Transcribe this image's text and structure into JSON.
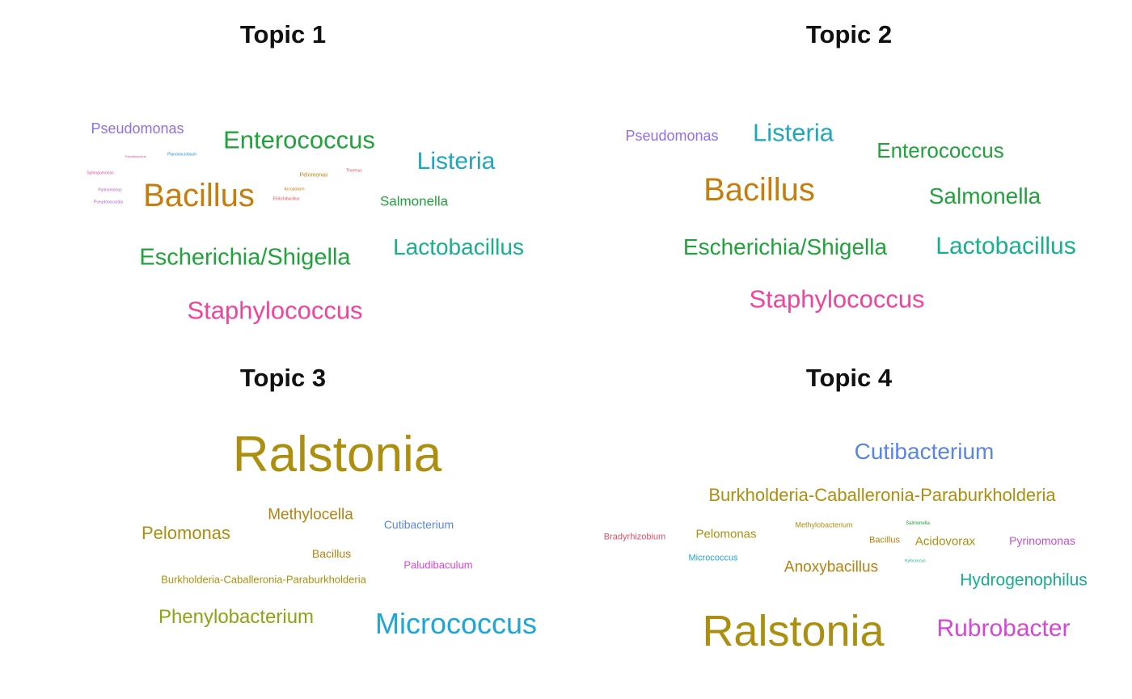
{
  "chart_data": [
    {
      "type": "wordcloud",
      "title": "Topic 1",
      "words": [
        {
          "text": "Bacillus",
          "weight": 40,
          "color": "#c77c0e"
        },
        {
          "text": "Enterococcus",
          "weight": 31,
          "color": "#1fa33a"
        },
        {
          "text": "Listeria",
          "weight": 30,
          "color": "#1ea7bd"
        },
        {
          "text": "Escherichia/Shigella",
          "weight": 29,
          "color": "#1fa33a"
        },
        {
          "text": "Staphylococcus",
          "weight": 31,
          "color": "#f0449c"
        },
        {
          "text": "Lactobacillus",
          "weight": 28,
          "color": "#17b08d"
        },
        {
          "text": "Salmonella",
          "weight": 17,
          "color": "#1fa33a"
        },
        {
          "text": "Pseudomonas",
          "weight": 18,
          "color": "#8f6ff0"
        },
        {
          "text": "Pelomonas",
          "weight": 7,
          "color": "#c77c0e"
        },
        {
          "text": "Thermus",
          "weight": 5,
          "color": "#e05050"
        },
        {
          "text": "Acropolium",
          "weight": 5,
          "color": "#c77c0e"
        },
        {
          "text": "Planomicrobium",
          "weight": 5,
          "color": "#2196d8"
        },
        {
          "text": "Sphingomonas",
          "weight": 5,
          "color": "#e34ea8"
        },
        {
          "text": "Pyrinomonas",
          "weight": 5,
          "color": "#c44fd6"
        },
        {
          "text": "Pseudonocardia",
          "weight": 5,
          "color": "#b05bd8"
        },
        {
          "text": "Paludibaculum",
          "weight": 4,
          "color": "#e34ea8"
        },
        {
          "text": "Ehrlichibacillus",
          "weight": 5,
          "color": "#e05050"
        }
      ]
    },
    {
      "type": "wordcloud",
      "title": "Topic 2",
      "words": [
        {
          "text": "Bacillus",
          "weight": 40,
          "color": "#c77c0e"
        },
        {
          "text": "Listeria",
          "weight": 31,
          "color": "#1ea7bd"
        },
        {
          "text": "Enterococcus",
          "weight": 26,
          "color": "#1fa33a"
        },
        {
          "text": "Salmonella",
          "weight": 28,
          "color": "#1fa33a"
        },
        {
          "text": "Escherichia/Shigella",
          "weight": 28,
          "color": "#1fa33a"
        },
        {
          "text": "Lactobacillus",
          "weight": 30,
          "color": "#17b08d"
        },
        {
          "text": "Staphylococcus",
          "weight": 31,
          "color": "#f0449c"
        },
        {
          "text": "Pseudomonas",
          "weight": 18,
          "color": "#8f6ff0"
        }
      ]
    },
    {
      "type": "wordcloud",
      "title": "Topic 3",
      "words": [
        {
          "text": "Ralstonia",
          "weight": 62,
          "color": "#ad8f0f"
        },
        {
          "text": "Methylocella",
          "weight": 19,
          "color": "#b8810e"
        },
        {
          "text": "Pelomonas",
          "weight": 22,
          "color": "#ad8f0f"
        },
        {
          "text": "Cutibacterium",
          "weight": 14,
          "color": "#5b84e8"
        },
        {
          "text": "Bacillus",
          "weight": 14,
          "color": "#b8810e"
        },
        {
          "text": "Paludibaculum",
          "weight": 13,
          "color": "#d846d8"
        },
        {
          "text": "Burkholderia-Caballeronia-Paraburkholderia",
          "weight": 13,
          "color": "#ad8f0f"
        },
        {
          "text": "Phenylobacterium",
          "weight": 24,
          "color": "#8ea313"
        },
        {
          "text": "Micrococcus",
          "weight": 36,
          "color": "#1ea7d6"
        }
      ]
    },
    {
      "type": "wordcloud",
      "title": "Topic 4",
      "words": [
        {
          "text": "Cutibacterium",
          "weight": 28,
          "color": "#5b84e8"
        },
        {
          "text": "Burkholderia-Caballeronia-Paraburkholderia",
          "weight": 22,
          "color": "#ad8f0f"
        },
        {
          "text": "Bradyrhizobium",
          "weight": 11,
          "color": "#e0506e"
        },
        {
          "text": "Pelomonas",
          "weight": 15,
          "color": "#ad8f0f"
        },
        {
          "text": "Methylobacterium",
          "weight": 9,
          "color": "#ad8f0f"
        },
        {
          "text": "Salmonella",
          "weight": 6,
          "color": "#1fa33a"
        },
        {
          "text": "Bacillus",
          "weight": 11,
          "color": "#b8810e"
        },
        {
          "text": "Acidovorax",
          "weight": 15,
          "color": "#ad8f0f"
        },
        {
          "text": "Pyrinomonas",
          "weight": 14,
          "color": "#c44fd6"
        },
        {
          "text": "Micrococcus",
          "weight": 11,
          "color": "#1ea7d6"
        },
        {
          "text": "Anoxybacillus",
          "weight": 19,
          "color": "#b8810e"
        },
        {
          "text": "Kytococcus",
          "weight": 5,
          "color": "#17b08d"
        },
        {
          "text": "Hydrogenophilus",
          "weight": 21,
          "color": "#17b08d"
        },
        {
          "text": "Ralstonia",
          "weight": 54,
          "color": "#ad8f0f"
        },
        {
          "text": "Rubrobacter",
          "weight": 30,
          "color": "#d846d8"
        }
      ]
    }
  ]
}
